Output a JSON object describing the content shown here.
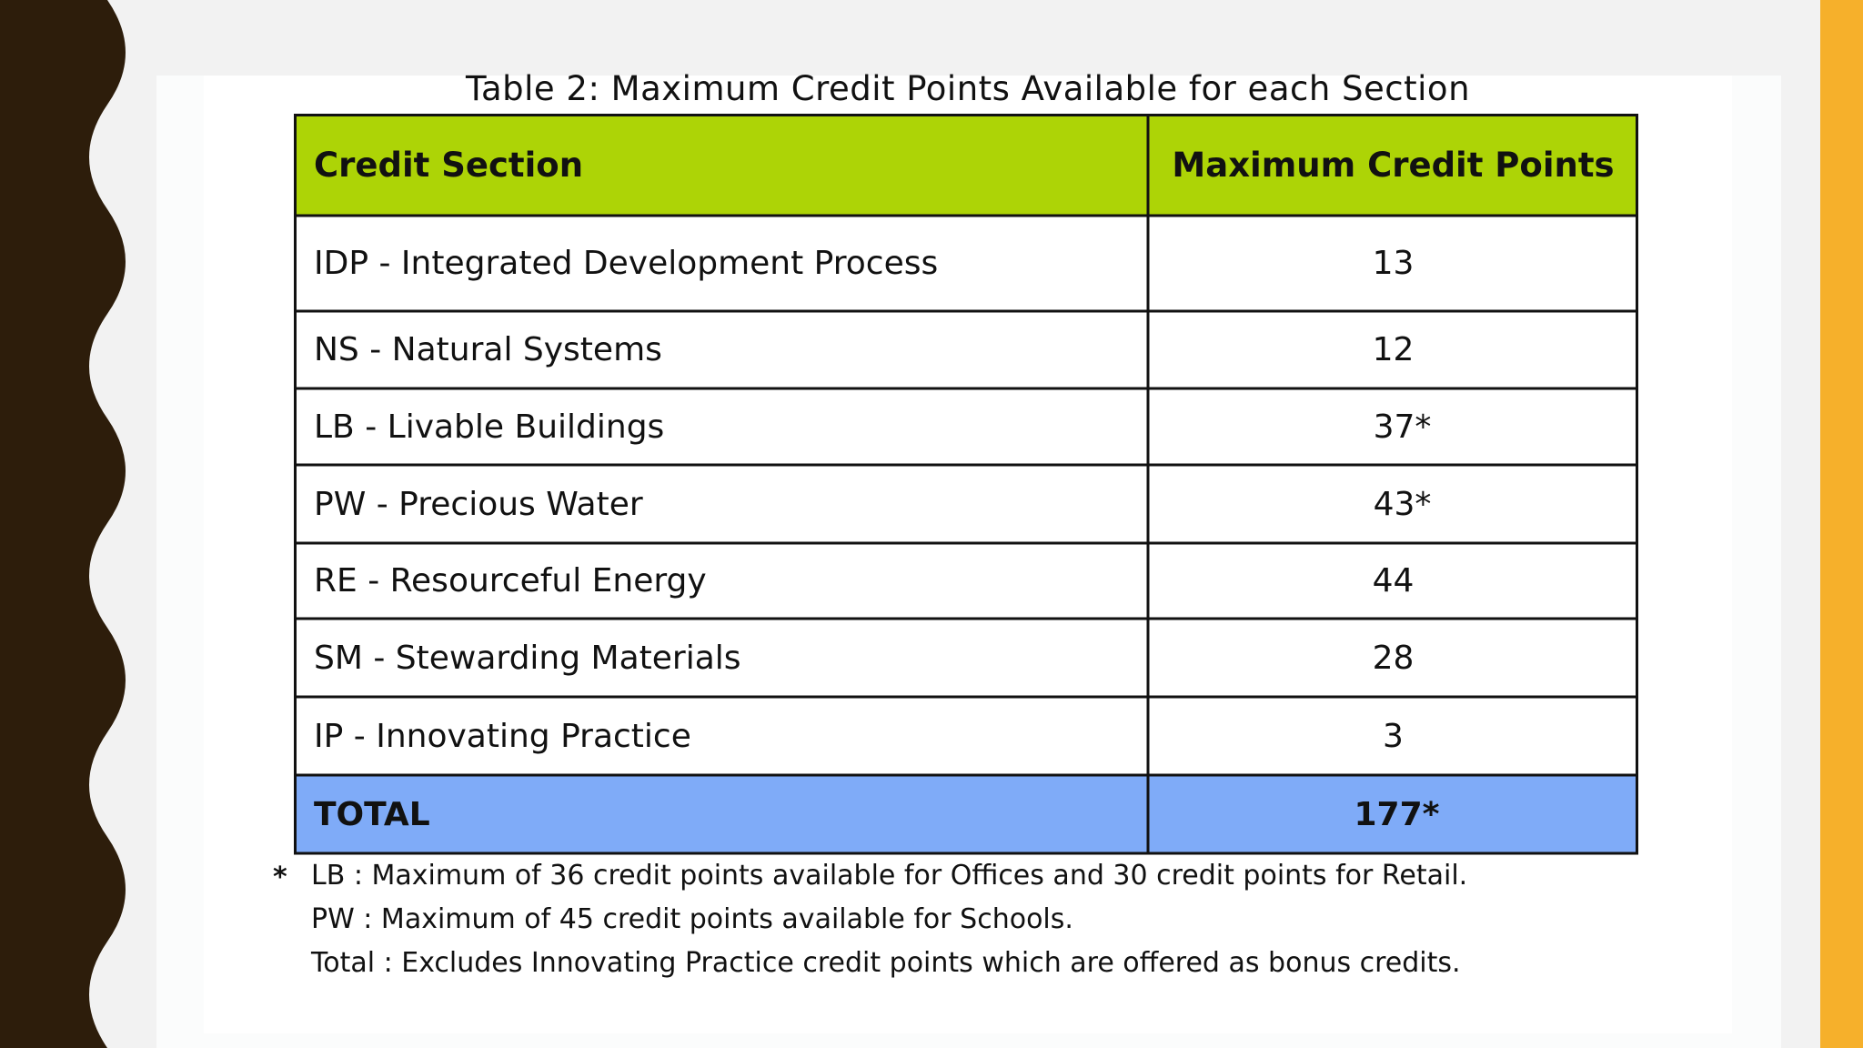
{
  "colors": {
    "left_band": "#2d1d0b",
    "right_stripe": "#f6b02b",
    "header_fill": "#add406",
    "total_fill": "#7fabf8",
    "border": "#111111"
  },
  "table": {
    "caption": "Table 2: Maximum Credit Points Available for each Section",
    "headers": {
      "section": "Credit Section",
      "points": "Maximum Credit Points"
    },
    "rows": [
      {
        "section": "IDP - Integrated Development Process",
        "points": "13"
      },
      {
        "section": "NS - Natural Systems",
        "points": "12"
      },
      {
        "section": "LB - Livable Buildings",
        "points": "37*"
      },
      {
        "section": "PW - Precious Water",
        "points": "43*"
      },
      {
        "section": "RE - Resourceful Energy",
        "points": "44"
      },
      {
        "section": "SM - Stewarding Materials",
        "points": "28"
      },
      {
        "section": "IP - Innovating Practice",
        "points": "3"
      }
    ],
    "total": {
      "section": "TOTAL",
      "points": "177*"
    }
  },
  "footnotes": {
    "marker": "*",
    "lines": [
      "LB : Maximum of 36 credit points available for Offices and 30 credit points for Retail.",
      "PW : Maximum of 45 credit points available for Schools.",
      "Total : Excludes Innovating Practice credit points which are offered as bonus credits."
    ]
  }
}
